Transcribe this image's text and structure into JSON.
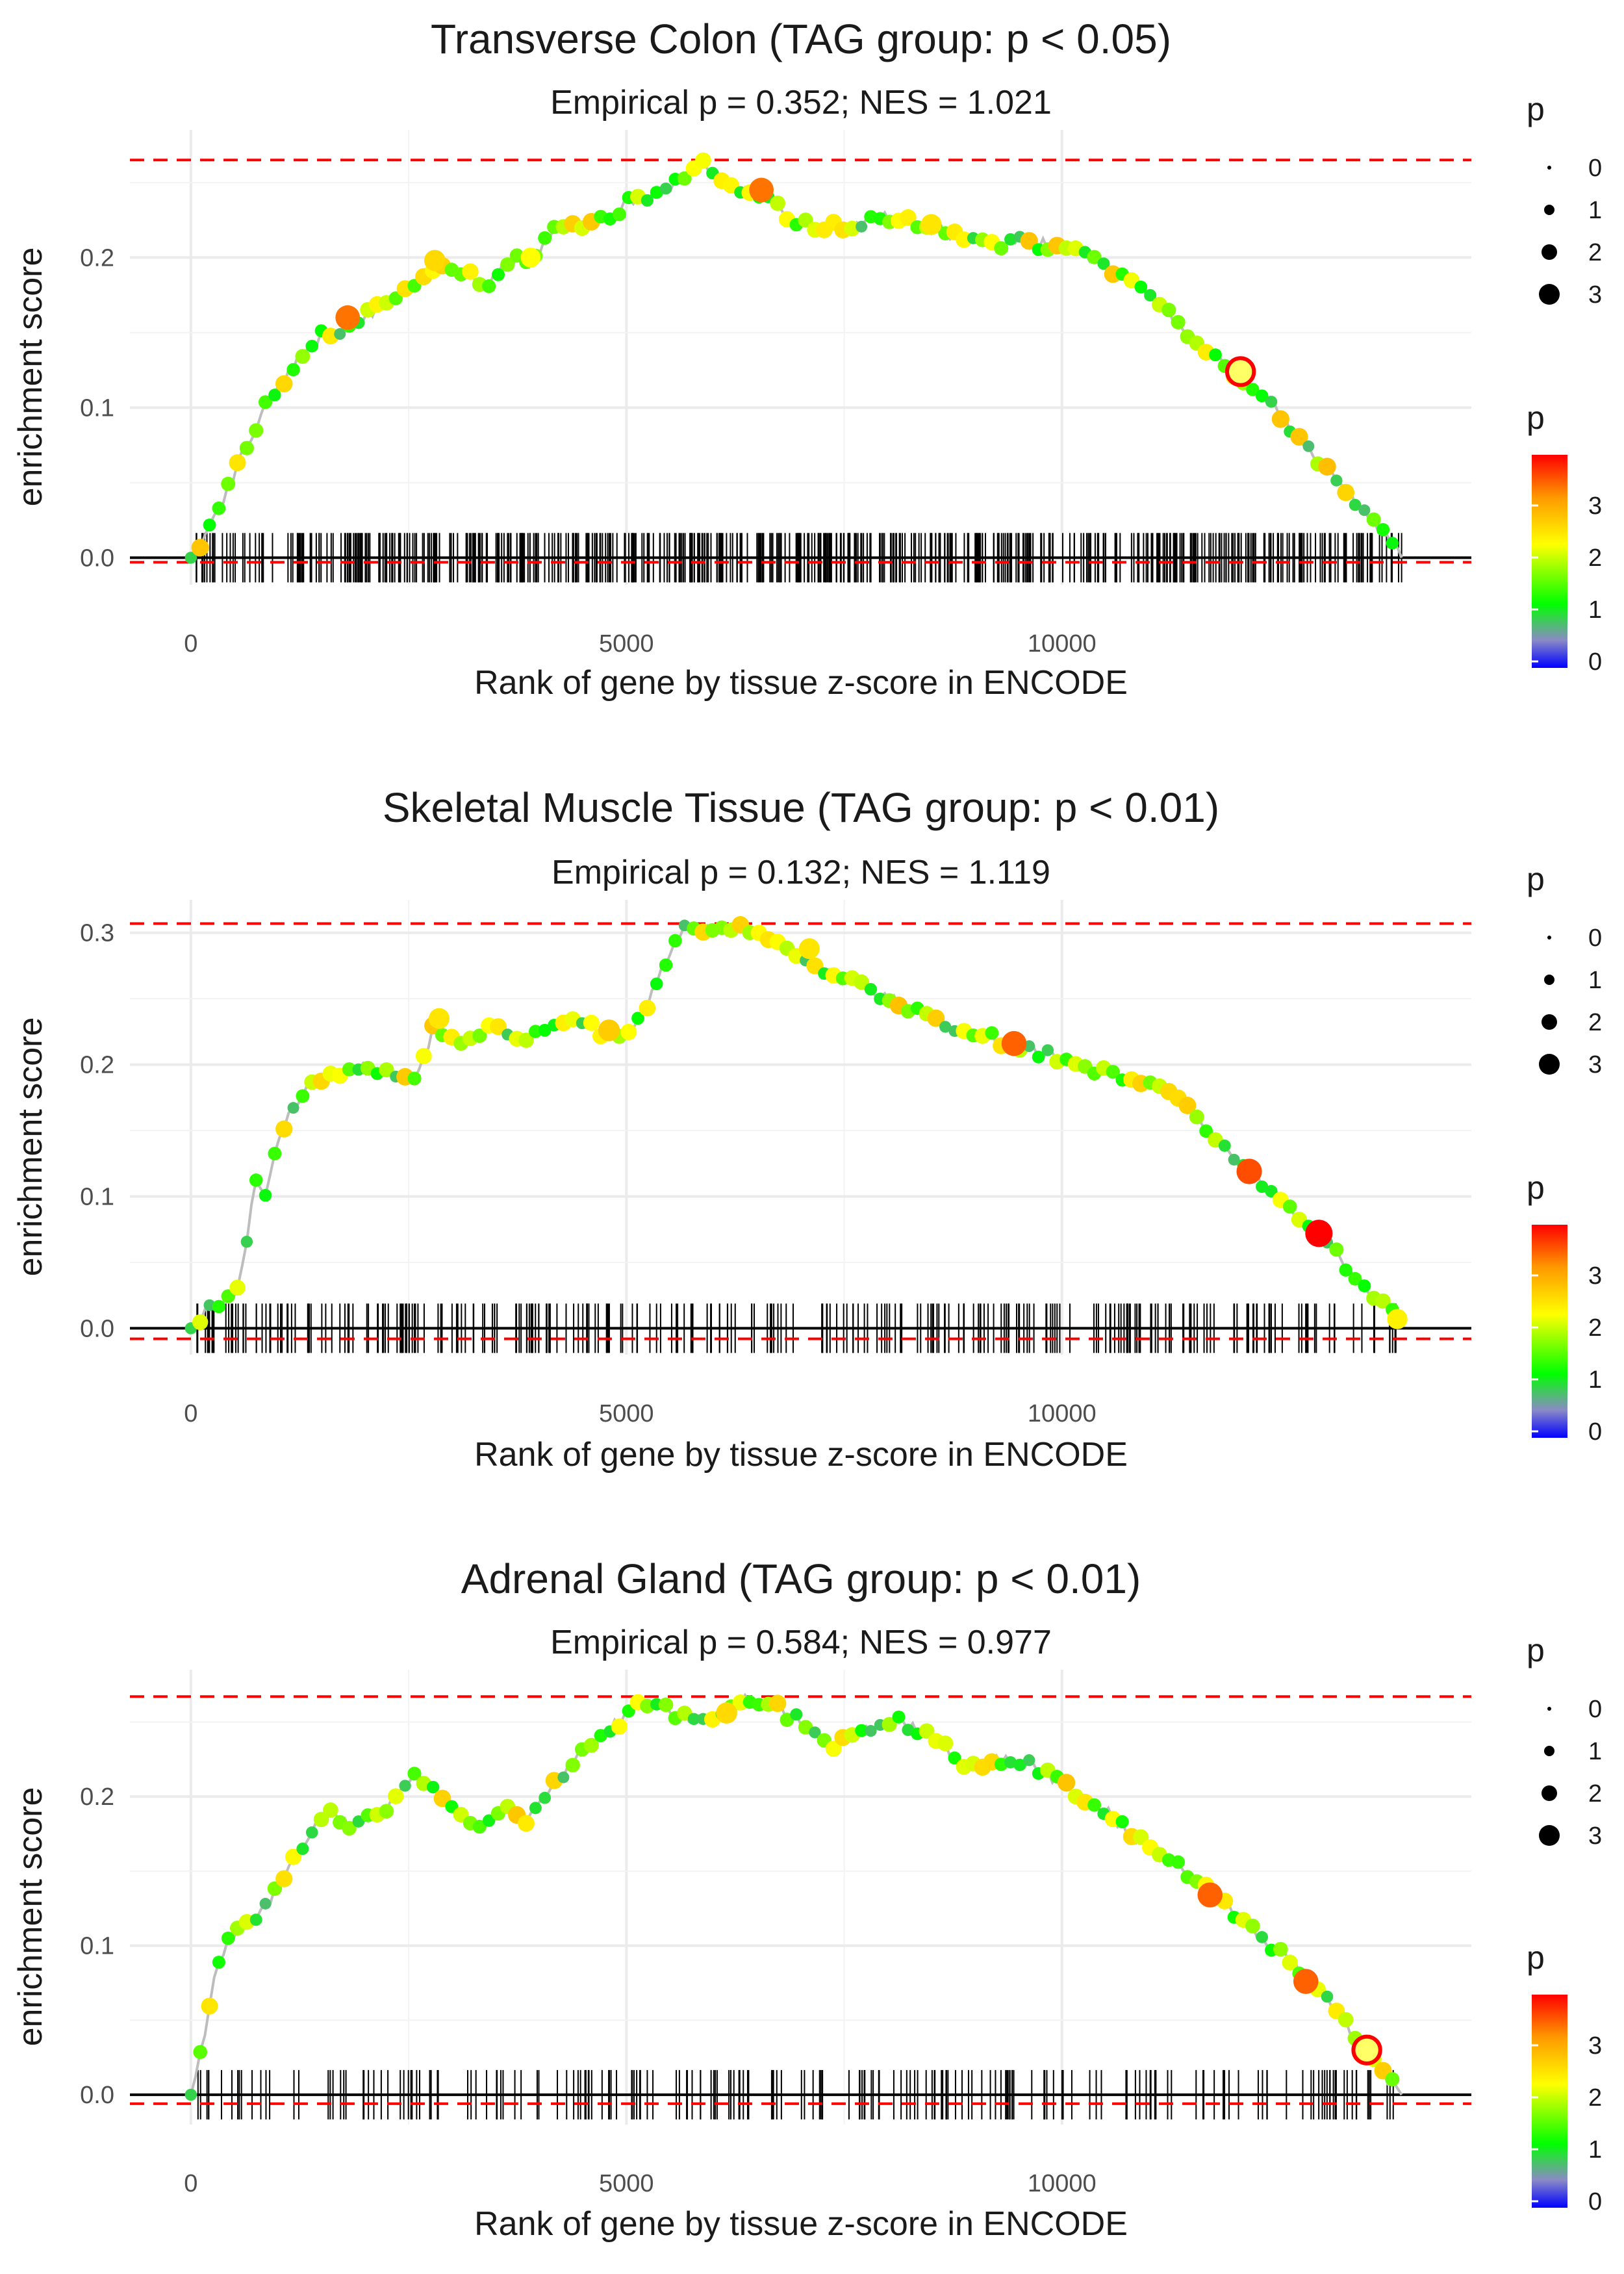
{
  "chart_data": [
    {
      "type": "line",
      "title": "Transverse Colon (TAG group: p < 0.05)",
      "subtitle": "Empirical p = 0.352; NES = 1.021",
      "xlabel": "Rank of gene by tissue z-score in ENCODE",
      "ylabel": "enrichment score",
      "xlim": [
        -700,
        14700
      ],
      "ylim": [
        -0.018,
        0.285
      ],
      "x_ticks": [
        0,
        5000,
        10000
      ],
      "x_tick_labels": [
        "0",
        "5000",
        "10000"
      ],
      "y_ticks": [
        0.0,
        0.1,
        0.2
      ],
      "y_tick_labels": [
        "0.0",
        "0.1",
        "0.2"
      ],
      "hlines": [
        0.265,
        -0.003
      ],
      "x": [
        0,
        300,
        600,
        900,
        1200,
        1500,
        1800,
        2100,
        2400,
        2800,
        3200,
        3400,
        3600,
        3900,
        4200,
        4500,
        4800,
        5100,
        5500,
        5850,
        6100,
        6500,
        7000,
        7500,
        8000,
        8500,
        9000,
        9500,
        10000,
        10500,
        11000,
        11500,
        12000,
        12500,
        13000,
        13500,
        13900
      ],
      "y": [
        0.0,
        0.03,
        0.07,
        0.105,
        0.13,
        0.148,
        0.155,
        0.165,
        0.178,
        0.195,
        0.19,
        0.183,
        0.196,
        0.2,
        0.22,
        0.223,
        0.228,
        0.24,
        0.245,
        0.265,
        0.252,
        0.242,
        0.222,
        0.22,
        0.227,
        0.22,
        0.21,
        0.21,
        0.208,
        0.195,
        0.175,
        0.148,
        0.122,
        0.095,
        0.062,
        0.03,
        0.0
      ],
      "highlights": [
        {
          "x": 1800,
          "y": 0.16,
          "p": 3.3,
          "ring": false
        },
        {
          "x": 2800,
          "y": 0.198,
          "p": 2.6,
          "ring": false
        },
        {
          "x": 3900,
          "y": 0.2,
          "p": 2.3,
          "ring": false
        },
        {
          "x": 6550,
          "y": 0.245,
          "p": 3.3,
          "ring": false
        },
        {
          "x": 8500,
          "y": 0.222,
          "p": 2.5,
          "ring": false
        },
        {
          "x": 12050,
          "y": 0.124,
          "p": 3.8,
          "ring": true
        }
      ],
      "rug_count": 560,
      "legend": {
        "size_title": "p",
        "size_labels": [
          "0",
          "1",
          "2",
          "3"
        ],
        "color_title": "p",
        "color_labels": [
          "3",
          "2",
          "1",
          "0"
        ]
      }
    },
    {
      "type": "line",
      "title": "Skeletal Muscle Tissue (TAG group: p < 0.01)",
      "subtitle": "Empirical p = 0.132; NES = 1.119",
      "xlabel": "Rank of gene by tissue z-score in ENCODE",
      "ylabel": "enrichment score",
      "xlim": [
        -700,
        14700
      ],
      "ylim": [
        -0.02,
        0.325
      ],
      "x_ticks": [
        0,
        5000,
        10000
      ],
      "x_tick_labels": [
        "0",
        "5000",
        "10000"
      ],
      "y_ticks": [
        0.0,
        0.1,
        0.2,
        0.3
      ],
      "y_tick_labels": [
        "0.0",
        "0.1",
        "0.2",
        "0.3"
      ],
      "hlines": [
        0.307,
        -0.008
      ],
      "x": [
        0,
        200,
        400,
        550,
        650,
        750,
        850,
        950,
        1100,
        1300,
        1500,
        1700,
        2000,
        2400,
        2600,
        2800,
        3000,
        3300,
        3500,
        3800,
        4100,
        4400,
        4700,
        5000,
        5200,
        5400,
        5600,
        5800,
        6100,
        6300,
        6700,
        7000,
        7300,
        7700,
        8200,
        8700,
        9200,
        9700,
        10200,
        10700,
        11100,
        11500,
        11900,
        12300,
        12700,
        13100,
        13500,
        13900
      ],
      "y": [
        0.0,
        0.015,
        0.02,
        0.03,
        0.07,
        0.115,
        0.1,
        0.13,
        0.16,
        0.18,
        0.19,
        0.19,
        0.2,
        0.19,
        0.19,
        0.23,
        0.22,
        0.22,
        0.23,
        0.22,
        0.23,
        0.235,
        0.225,
        0.22,
        0.24,
        0.27,
        0.3,
        0.305,
        0.3,
        0.305,
        0.29,
        0.285,
        0.27,
        0.26,
        0.245,
        0.23,
        0.22,
        0.21,
        0.2,
        0.19,
        0.185,
        0.165,
        0.135,
        0.11,
        0.085,
        0.06,
        0.03,
        0.005
      ],
      "highlights": [
        {
          "x": 2850,
          "y": 0.235,
          "p": 2.5,
          "ring": false
        },
        {
          "x": 4800,
          "y": 0.226,
          "p": 2.7,
          "ring": false
        },
        {
          "x": 7100,
          "y": 0.288,
          "p": 2.5,
          "ring": false
        },
        {
          "x": 9450,
          "y": 0.216,
          "p": 3.4,
          "ring": false
        },
        {
          "x": 12150,
          "y": 0.119,
          "p": 3.5,
          "ring": false
        },
        {
          "x": 12950,
          "y": 0.072,
          "p": 3.9,
          "ring": false
        },
        {
          "x": 13850,
          "y": 0.007,
          "p": 2.4,
          "ring": false
        }
      ],
      "rug_count": 300,
      "legend": {
        "size_title": "p",
        "size_labels": [
          "0",
          "1",
          "2",
          "3"
        ],
        "color_title": "p",
        "color_labels": [
          "3",
          "2",
          "1",
          "0"
        ]
      }
    },
    {
      "type": "line",
      "title": "Adrenal Gland (TAG group: p < 0.01)",
      "subtitle": "Empirical p = 0.584; NES = 0.977",
      "xlabel": "Rank of gene by tissue z-score in ENCODE",
      "ylabel": "enrichment score",
      "xlim": [
        -700,
        14700
      ],
      "ylim": [
        -0.02,
        0.285
      ],
      "x_ticks": [
        0,
        5000,
        10000
      ],
      "x_tick_labels": [
        "0",
        "5000",
        "10000"
      ],
      "y_ticks": [
        0.0,
        0.1,
        0.2
      ],
      "y_tick_labels": [
        "0.0",
        "0.1",
        "0.2"
      ],
      "hlines": [
        0.267,
        -0.006
      ],
      "x": [
        0,
        100,
        200,
        300,
        400,
        600,
        800,
        1000,
        1200,
        1400,
        1600,
        1800,
        2000,
        2200,
        2400,
        2600,
        3100,
        3400,
        3600,
        3900,
        4200,
        4500,
        4700,
        5000,
        5300,
        5600,
        6000,
        6300,
        6700,
        7000,
        7400,
        7700,
        8100,
        8500,
        8900,
        9300,
        9700,
        10100,
        10500,
        10900,
        11300,
        11700,
        12100,
        12500,
        12900,
        13300,
        13600,
        13900
      ],
      "y": [
        0.0,
        0.03,
        0.05,
        0.09,
        0.1,
        0.115,
        0.12,
        0.14,
        0.16,
        0.18,
        0.19,
        0.18,
        0.185,
        0.19,
        0.2,
        0.215,
        0.185,
        0.18,
        0.19,
        0.185,
        0.21,
        0.23,
        0.24,
        0.255,
        0.265,
        0.255,
        0.25,
        0.265,
        0.26,
        0.25,
        0.235,
        0.245,
        0.25,
        0.24,
        0.22,
        0.225,
        0.22,
        0.205,
        0.19,
        0.17,
        0.155,
        0.135,
        0.115,
        0.095,
        0.075,
        0.045,
        0.02,
        0.0
      ],
      "highlights": [
        {
          "x": 6150,
          "y": 0.256,
          "p": 2.6,
          "ring": false
        },
        {
          "x": 11700,
          "y": 0.134,
          "p": 3.4,
          "ring": false
        },
        {
          "x": 12800,
          "y": 0.076,
          "p": 3.4,
          "ring": false
        },
        {
          "x": 13500,
          "y": 0.03,
          "p": 3.8,
          "ring": true
        }
      ],
      "rug_count": 210,
      "legend": {
        "size_title": "p",
        "size_labels": [
          "0",
          "1",
          "2",
          "3"
        ],
        "color_title": "p",
        "color_labels": [
          "3",
          "2",
          "1",
          "0"
        ]
      }
    }
  ],
  "colors": {
    "ref_line": "#ff0000",
    "baseline": "#000000",
    "grid": "#ebebeb",
    "curve": "#bdbdbd",
    "rug": "#000000",
    "gradient": [
      "#0000ff",
      "#8b8bc0",
      "#00ff00",
      "#ffff00",
      "#ff0000"
    ]
  }
}
